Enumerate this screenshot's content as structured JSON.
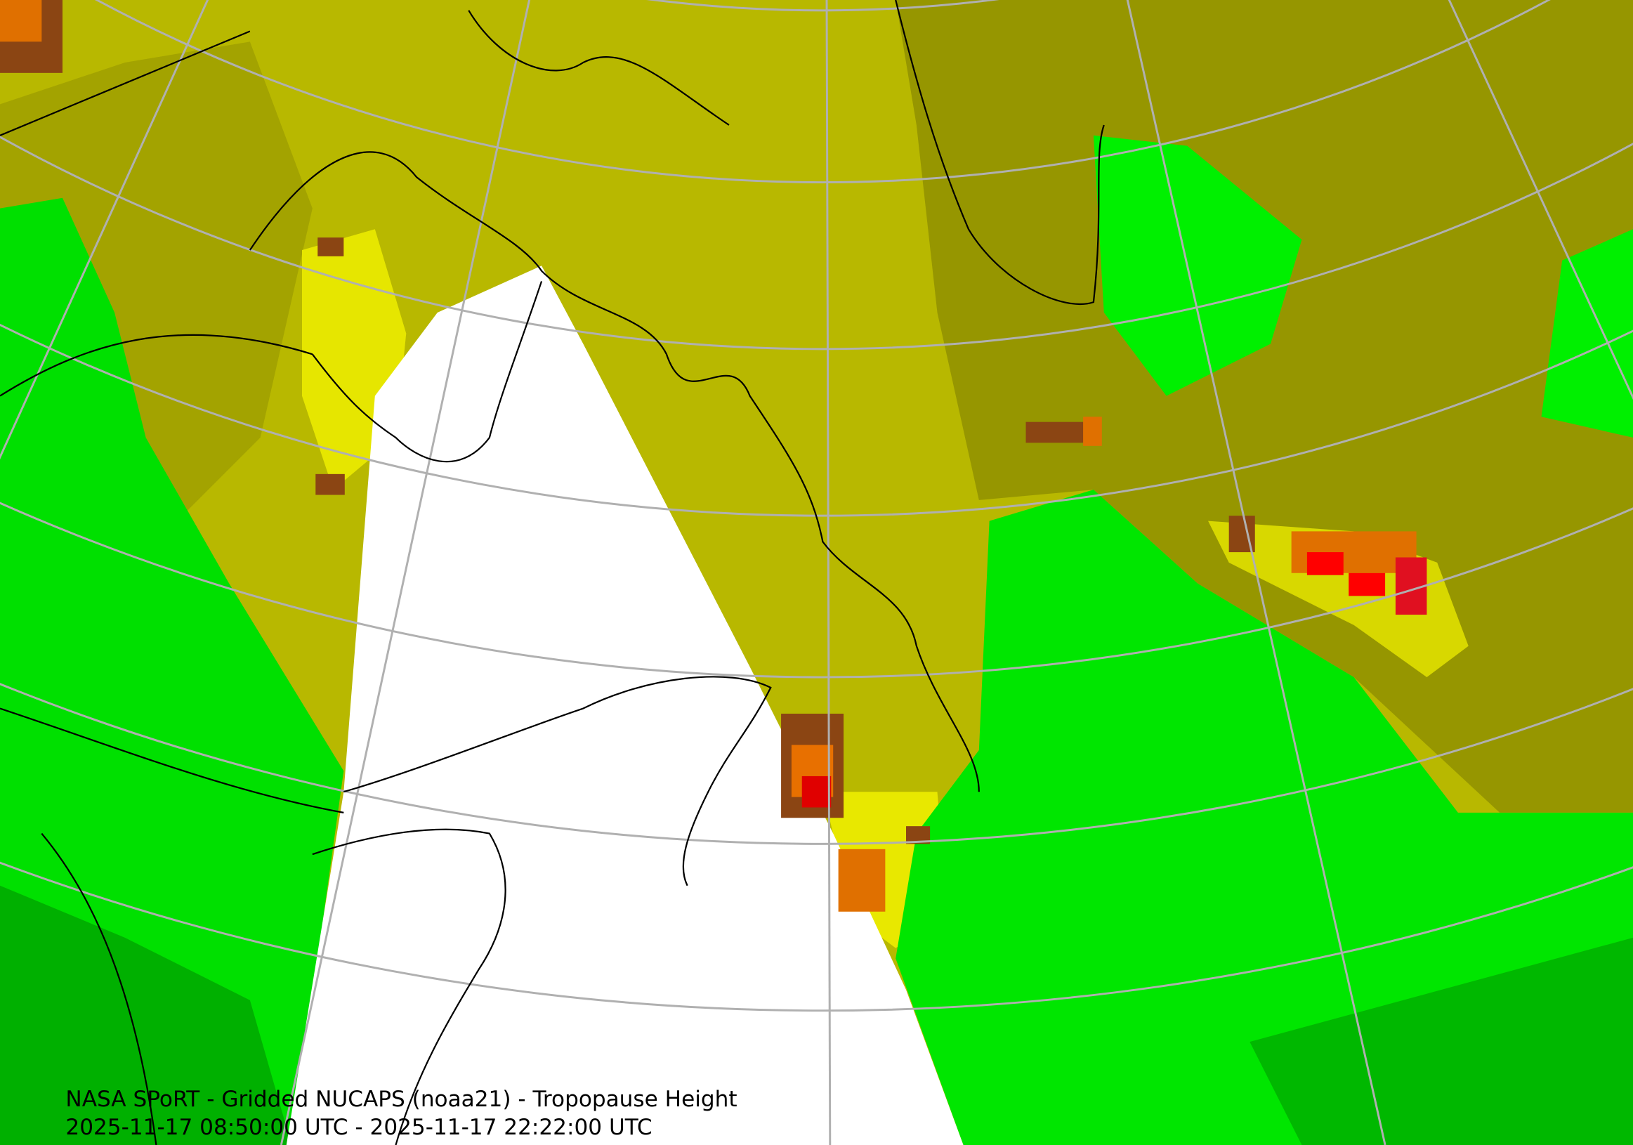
{
  "caption": {
    "title": "NASA SPoRT - Gridded NUCAPS (noaa21) - Tropopause Height",
    "time_range": "2025-11-17 08:50:00 UTC - 2025-11-17 22:22:00 UTC"
  }
}
